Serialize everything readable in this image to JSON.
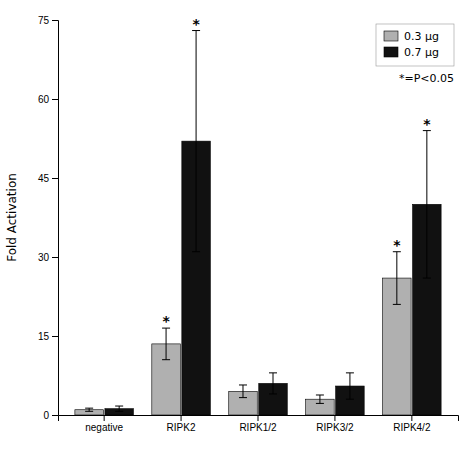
{
  "chart_data": {
    "type": "bar",
    "categories": [
      "negative",
      "RIPK2",
      "RIPK1/2",
      "RIPK3/2",
      "RIPK4/2"
    ],
    "series": [
      {
        "name": "0.3 μg",
        "color": "#b0b0b0",
        "values": [
          1.0,
          13.5,
          4.5,
          3.0,
          26.0
        ],
        "errors": [
          0.3,
          3.0,
          1.2,
          0.8,
          5.0
        ],
        "significant": [
          false,
          true,
          false,
          false,
          true
        ]
      },
      {
        "name": "0.7 μg",
        "color": "#111111",
        "values": [
          1.2,
          52.0,
          6.0,
          5.5,
          40.0
        ],
        "errors": [
          0.5,
          21.0,
          2.0,
          2.5,
          14.0
        ],
        "significant": [
          false,
          true,
          false,
          false,
          true
        ]
      }
    ],
    "ylabel": "Fold Activation",
    "ylim": [
      0,
      75
    ],
    "yticks": [
      0,
      15,
      30,
      45,
      60,
      75
    ],
    "legend": "upper right",
    "significance_mark": "*",
    "significance_note": "*=P<0.05"
  }
}
